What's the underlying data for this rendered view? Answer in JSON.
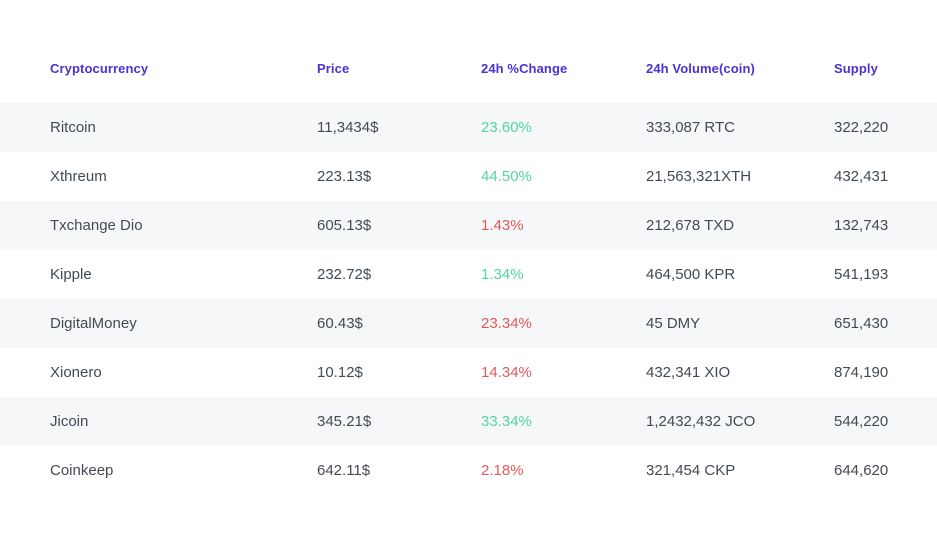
{
  "table": {
    "columns": [
      {
        "label": "Cryptocurrency"
      },
      {
        "label": "Price"
      },
      {
        "label": "24h %Change"
      },
      {
        "label": "24h Volume(coin)"
      },
      {
        "label": "Supply"
      }
    ],
    "rows": [
      {
        "name": "Ritcoin",
        "price": "11,3434$",
        "change": "23.60%",
        "change_direction": "up",
        "volume": "333,087 RTC",
        "supply": "322,220"
      },
      {
        "name": "Xthreum",
        "price": "223.13$",
        "change": "44.50%",
        "change_direction": "up",
        "volume": "21,563,321XTH",
        "supply": "432,431"
      },
      {
        "name": "Txchange Dio",
        "price": "605.13$",
        "change": "1.43%",
        "change_direction": "down",
        "volume": "212,678 TXD",
        "supply": "132,743"
      },
      {
        "name": "Kipple",
        "price": "232.72$",
        "change": "1.34%",
        "change_direction": "up",
        "volume": "464,500 KPR",
        "supply": "541,193"
      },
      {
        "name": "DigitalMoney",
        "price": "60.43$",
        "change": "23.34%",
        "change_direction": "down",
        "volume": "45 DMY",
        "supply": "651,430"
      },
      {
        "name": "Xionero",
        "price": "10.12$",
        "change": "14.34%",
        "change_direction": "down",
        "volume": "432,341 XIO",
        "supply": "874,190"
      },
      {
        "name": "Jicoin",
        "price": "345.21$",
        "change": "33.34%",
        "change_direction": "up",
        "volume": "1,2432,432 JCO",
        "supply": "544,220"
      },
      {
        "name": "Coinkeep",
        "price": "642.11$",
        "change": "2.18%",
        "change_direction": "down",
        "volume": "321,454 CKP",
        "supply": "644,620"
      }
    ],
    "colors": {
      "header": "#4b32d2",
      "positive": "#52d69b",
      "negative": "#e05a5a",
      "row_alt_bg": "#f6f7f9",
      "text": "#424a56"
    }
  }
}
